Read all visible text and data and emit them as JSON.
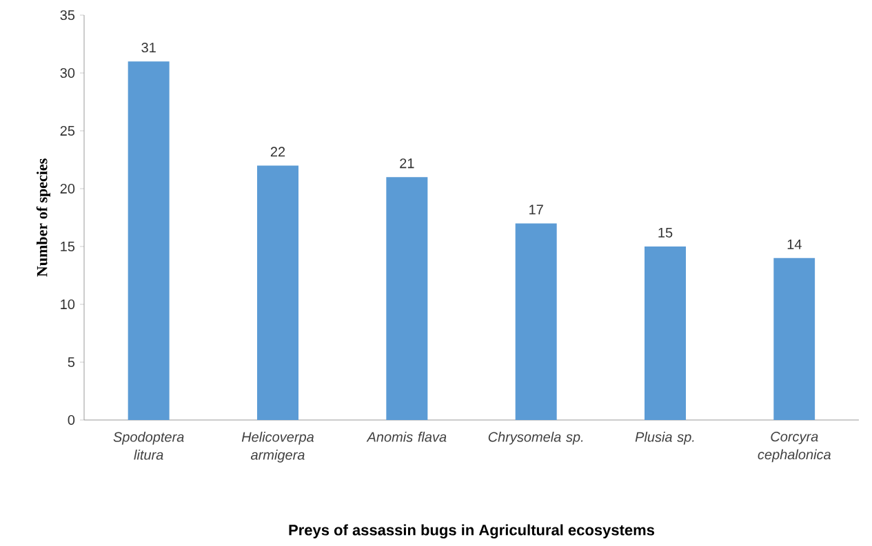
{
  "chart_data": {
    "type": "bar",
    "xlabel": "Preys of assassin bugs in Agricultural ecosystems",
    "ylabel": "Number of species",
    "categories": [
      "*Spodoptera litura*",
      "*Helicoverpa armigera*",
      "*Anomis flava*",
      "*Chrysomela sp.*",
      "*Plusia sp.*",
      "*Corcyra cephalonica*"
    ],
    "values": [
      31,
      22,
      21,
      17,
      15,
      14
    ],
    "color": "#5b9bd5",
    "ylim": [
      0,
      35
    ],
    "yticks": [
      0,
      5,
      10,
      15,
      20,
      25,
      30,
      35
    ],
    "data_labels": true
  }
}
